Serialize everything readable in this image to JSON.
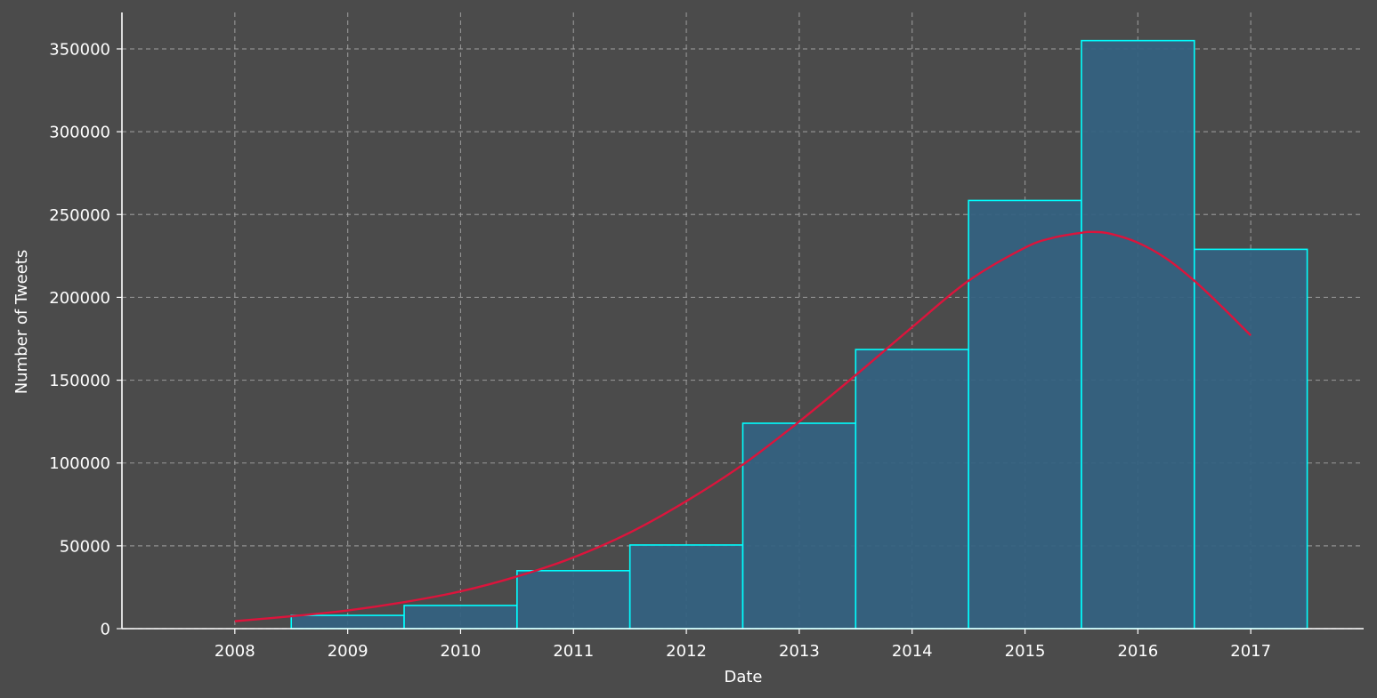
{
  "chart_data": {
    "type": "bar",
    "xlabel": "Date",
    "ylabel": "Number of Tweets",
    "xlim": [
      2007,
      2018
    ],
    "ylim": [
      0,
      372000
    ],
    "grid": true,
    "x_ticks": [
      "2008",
      "2009",
      "2010",
      "2011",
      "2012",
      "2013",
      "2014",
      "2015",
      "2016",
      "2017"
    ],
    "y_ticks": [
      "0",
      "50000",
      "100000",
      "150000",
      "200000",
      "250000",
      "300000",
      "350000"
    ],
    "bars": [
      {
        "center": 2009,
        "value": 8000
      },
      {
        "center": 2010,
        "value": 14000
      },
      {
        "center": 2011,
        "value": 35000
      },
      {
        "center": 2012,
        "value": 50500
      },
      {
        "center": 2013,
        "value": 124000
      },
      {
        "center": 2014,
        "value": 168500
      },
      {
        "center": 2015,
        "value": 258500
      },
      {
        "center": 2016,
        "value": 355000
      },
      {
        "center": 2017,
        "value": 229000
      }
    ],
    "trend_line": {
      "x": [
        2008,
        2008.5,
        2009,
        2009.5,
        2010,
        2010.5,
        2011,
        2011.5,
        2012,
        2012.5,
        2013,
        2013.5,
        2014,
        2014.5,
        2015,
        2015.25,
        2015.5,
        2015.6,
        2015.75,
        2016,
        2016.25,
        2016.5,
        2016.75,
        2017
      ],
      "y": [
        4500,
        7500,
        11000,
        16000,
        22500,
        31500,
        43000,
        58000,
        77000,
        99000,
        125000,
        153000,
        182000,
        210000,
        230000,
        236000,
        239000,
        239500,
        238500,
        233000,
        223500,
        210000,
        194000,
        177000
      ]
    },
    "colors": {
      "background": "#4b4b4b",
      "bar_fill": "#336281",
      "bar_edge": "#00ffff",
      "trend": "#dc143c",
      "grid": "#a8a8a8",
      "text": "#ffffff"
    }
  }
}
